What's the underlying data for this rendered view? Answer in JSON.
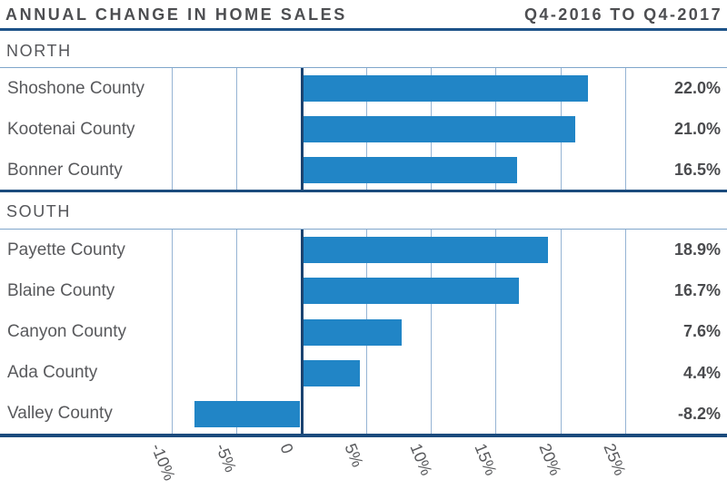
{
  "header": {
    "title": "ANNUAL CHANGE IN HOME SALES",
    "period": "Q4-2016 TO Q4-2017"
  },
  "chart_data": {
    "type": "bar",
    "orientation": "horizontal",
    "title": "ANNUAL CHANGE IN HOME SALES",
    "subtitle": "Q4-2016 TO Q4-2017",
    "unit": "percent",
    "xlabel": "",
    "ylabel": "",
    "axis": {
      "tick_labels": [
        "-10%",
        "-5%",
        "0",
        "5%",
        "10%",
        "15%",
        "20%",
        "25%"
      ],
      "tick_values": [
        -10,
        -5,
        0,
        5,
        10,
        15,
        20,
        25
      ],
      "range": [
        -12.5,
        27.5
      ],
      "grid": true,
      "tick_label_rotation_deg": 68
    },
    "groups": [
      {
        "label": "NORTH",
        "rows": [
          {
            "category": "Shoshone County",
            "value": 22.0,
            "value_label": "22.0%"
          },
          {
            "category": "Kootenai County",
            "value": 21.0,
            "value_label": "21.0%"
          },
          {
            "category": "Bonner County",
            "value": 16.5,
            "value_label": "16.5%"
          }
        ]
      },
      {
        "label": "SOUTH",
        "rows": [
          {
            "category": "Payette County",
            "value": 18.9,
            "value_label": "18.9%"
          },
          {
            "category": "Blaine County",
            "value": 16.7,
            "value_label": "16.7%"
          },
          {
            "category": "Canyon County",
            "value": 7.6,
            "value_label": "7.6%"
          },
          {
            "category": "Ada County",
            "value": 4.4,
            "value_label": "4.4%"
          },
          {
            "category": "Valley County",
            "value": -8.2,
            "value_label": "-8.2%"
          }
        ]
      }
    ],
    "colors": {
      "bar": "#2185c6",
      "navy_line": "#1b4b7d",
      "zero_line": "#1b4370",
      "gridline": "#96b4d4",
      "panel_top_border": "#7fa6cb",
      "header_rule": "#1d5288",
      "title_text": "#4d4e51",
      "label_text": "#58595c",
      "value_text": "#4a4b4e"
    }
  }
}
